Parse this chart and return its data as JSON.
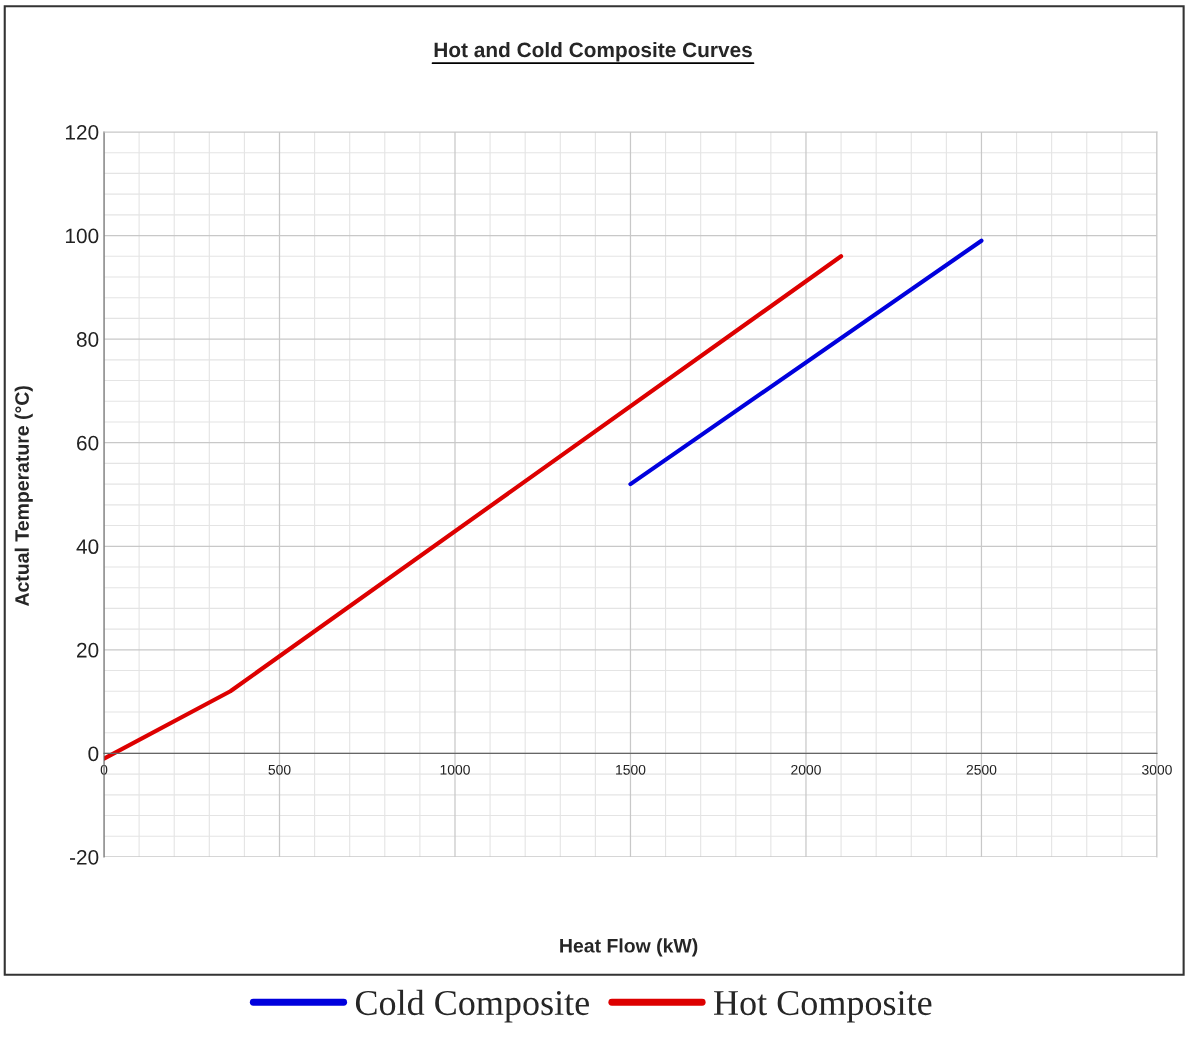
{
  "chart_data": {
    "type": "line",
    "title": "Hot and Cold Composite Curves",
    "xlabel": "Heat Flow (kW)",
    "ylabel": "Actual Temperature (°C)",
    "series": [
      {
        "name": "Cold Composite",
        "color": "#0000dd",
        "x": [
          1500,
          2500
        ],
        "values": [
          52,
          99
        ]
      },
      {
        "name": "Hot Composite",
        "color": "#dd0000",
        "x": [
          0,
          360,
          2100
        ],
        "values": [
          -1,
          12,
          96
        ]
      }
    ],
    "xlim": [
      0,
      3000
    ],
    "xticks": [
      0,
      500,
      1000,
      1500,
      2000,
      2500,
      3000
    ],
    "ylim": [
      -20,
      120
    ],
    "yticks": [
      -20,
      0,
      20,
      40,
      60,
      80,
      100,
      120
    ],
    "grid": true,
    "legend": "bottom",
    "marker": "none",
    "line_style": "solid"
  }
}
